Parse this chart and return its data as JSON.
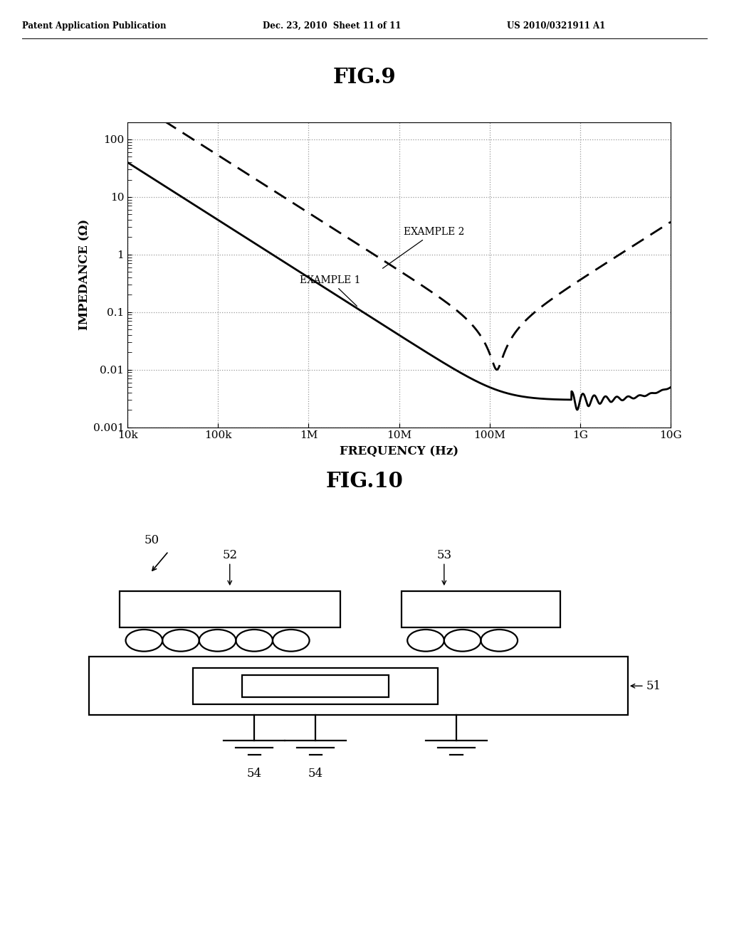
{
  "header_left": "Patent Application Publication",
  "header_mid": "Dec. 23, 2010  Sheet 11 of 11",
  "header_right": "US 2010/0321911 A1",
  "fig9_title": "FIG.9",
  "fig10_title": "FIG.10",
  "ylabel": "IMPEDANCE (Ω)",
  "xlabel": "FREQUENCY (Hz)",
  "label1": "EXAMPLE 1",
  "label2": "EXAMPLE 2",
  "bg_color": "#ffffff",
  "line_color": "#000000",
  "grid_color": "#999999",
  "xtick_labels": [
    "10k",
    "100k",
    "1M",
    "10M",
    "100M",
    "1G",
    "10G"
  ],
  "ytick_labels": [
    "0.001",
    "0.01",
    "0.1",
    "1",
    "10",
    "100"
  ]
}
